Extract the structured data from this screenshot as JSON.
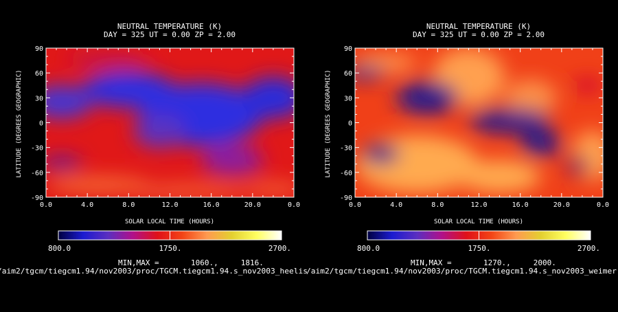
{
  "colorscale": {
    "stops": [
      "#000040",
      "#1b1bd0",
      "#5a2ec0",
      "#b0108a",
      "#e01018",
      "#f34416",
      "#ff9a50",
      "#e3d030",
      "#ffff60",
      "#ffffff"
    ],
    "labels": [
      "800.0",
      "1750.",
      "2700."
    ]
  },
  "panels": [
    {
      "title_line1": "NEUTRAL TEMPERATURE (K)",
      "title_line2": "DAY = 325   UT =  0.00   ZP =    2.00",
      "minmax": "MIN,MAX =       1060.,     1816.",
      "path": "/aim2/tgcm/tiegcm1.94/nov2003/proc/TGCM.tiegcm1.94.s_nov2003_heelis"
    },
    {
      "title_line1": "NEUTRAL TEMPERATURE (K)",
      "title_line2": "DAY = 325   UT =  0.00   ZP =    2.00",
      "minmax": "MIN,MAX =       1270.,     2000.",
      "path": "/aim2/tgcm/tiegcm1.94/nov2003/proc/TGCM.tiegcm1.94.s_nov2003_weimer"
    }
  ],
  "chart_data": [
    {
      "type": "heatmap",
      "title": "NEUTRAL TEMPERATURE (K)",
      "subtitle": "DAY = 325   UT =  0.00   ZP =    2.00",
      "xlabel": "SOLAR LOCAL TIME (HOURS)",
      "ylabel": "LATITUDE (DEGREES GEOGRAPHIC)",
      "xticks": [
        "0.0",
        "4.0",
        "8.0",
        "12.0",
        "16.0",
        "20.0",
        "0.0"
      ],
      "yticks": [
        "-90",
        "-60",
        "-30",
        "0",
        "30",
        "60",
        "90"
      ],
      "xlim": [
        0,
        24
      ],
      "ylim": [
        -90,
        90
      ],
      "zlim": [
        800,
        2700
      ],
      "min": 1060,
      "max": 1816,
      "background": "#e01818",
      "blobs": [
        {
          "x": 8,
          "y": 40,
          "rx": 4.5,
          "ry": 22,
          "color": "#2d2de0"
        },
        {
          "x": 15,
          "y": 10,
          "rx": 6,
          "ry": 38,
          "color": "#2d2de0"
        },
        {
          "x": 22,
          "y": 30,
          "rx": 3,
          "ry": 25,
          "color": "#2b2bd8"
        },
        {
          "x": 1.5,
          "y": 25,
          "rx": 3,
          "ry": 20,
          "color": "#4535d0"
        },
        {
          "x": 11,
          "y": -10,
          "rx": 2.5,
          "ry": 20,
          "color": "#5a30c0"
        },
        {
          "x": 18,
          "y": -45,
          "rx": 3,
          "ry": 18,
          "color": "#8a1fa0"
        },
        {
          "x": 1.5,
          "y": -48,
          "rx": 2,
          "ry": 8,
          "color": "#6a1a9a"
        },
        {
          "x": 5,
          "y": -75,
          "rx": 5,
          "ry": 10,
          "color": "#f76a30"
        },
        {
          "x": 14,
          "y": -82,
          "rx": 6,
          "ry": 8,
          "color": "#f56030"
        },
        {
          "x": 22,
          "y": -80,
          "rx": 3,
          "ry": 8,
          "color": "#f56030"
        },
        {
          "x": 6,
          "y": 75,
          "rx": 4,
          "ry": 10,
          "color": "#c51444"
        }
      ]
    },
    {
      "type": "heatmap",
      "title": "NEUTRAL TEMPERATURE (K)",
      "subtitle": "DAY = 325   UT =  0.00   ZP =    2.00",
      "xlabel": "SOLAR LOCAL TIME (HOURS)",
      "ylabel": "LATITUDE (DEGREES GEOGRAPHIC)",
      "xticks": [
        "0.0",
        "4.0",
        "8.0",
        "12.0",
        "16.0",
        "20.0",
        "0.0"
      ],
      "yticks": [
        "-90",
        "-60",
        "-30",
        "0",
        "30",
        "60",
        "90"
      ],
      "xlim": [
        0,
        24
      ],
      "ylim": [
        -90,
        90
      ],
      "zlim": [
        800,
        2700
      ],
      "min": 1270,
      "max": 2000,
      "background": "#f04018",
      "blobs": [
        {
          "x": 6,
          "y": -50,
          "rx": 6,
          "ry": 35,
          "color": "#ffaa50"
        },
        {
          "x": 14,
          "y": -65,
          "rx": 4,
          "ry": 20,
          "color": "#ffaa50"
        },
        {
          "x": 23,
          "y": -40,
          "rx": 2,
          "ry": 30,
          "color": "#ffa050"
        },
        {
          "x": 11,
          "y": 55,
          "rx": 3.5,
          "ry": 35,
          "color": "#ffa050"
        },
        {
          "x": 17,
          "y": 30,
          "rx": 2.5,
          "ry": 22,
          "color": "#fb9048"
        },
        {
          "x": 3,
          "y": 72,
          "rx": 3,
          "ry": 10,
          "color": "#ff9a50"
        },
        {
          "x": 7,
          "y": 30,
          "rx": 3,
          "ry": 20,
          "color": "#2a1a8a"
        },
        {
          "x": 15,
          "y": 2,
          "rx": 4,
          "ry": 15,
          "color": "#2a1a8a"
        },
        {
          "x": 18,
          "y": -25,
          "rx": 2,
          "ry": 15,
          "color": "#2a1a8a"
        },
        {
          "x": 2.5,
          "y": -38,
          "rx": 1.8,
          "ry": 12,
          "color": "#2a1a8a"
        },
        {
          "x": 1,
          "y": 60,
          "rx": 2,
          "ry": 8,
          "color": "#2a1a8a"
        },
        {
          "x": 21.5,
          "y": -52,
          "rx": 1.2,
          "ry": 12,
          "color": "#8a1a60"
        },
        {
          "x": 22.5,
          "y": 45,
          "rx": 1.5,
          "ry": 8,
          "color": "#d01030"
        }
      ]
    }
  ]
}
